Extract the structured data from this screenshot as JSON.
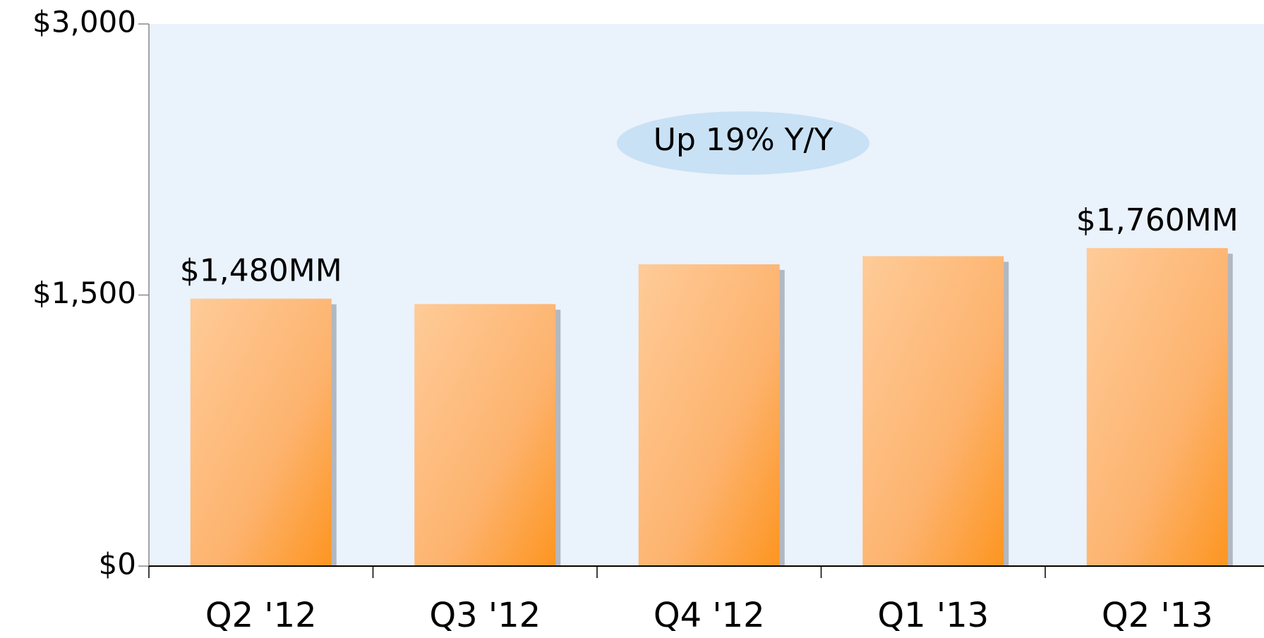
{
  "chart_data": {
    "type": "bar",
    "categories": [
      "Q2 '12",
      "Q3 '12",
      "Q4 '12",
      "Q1 '13",
      "Q2 '13"
    ],
    "values": [
      1480,
      1450,
      1670,
      1715,
      1760
    ],
    "value_labels": [
      "$1,480MM",
      null,
      null,
      null,
      "$1,760MM"
    ],
    "color": "#fdb36e",
    "ylim": [
      0,
      3000
    ],
    "yticks": [
      {
        "value": 0,
        "label": "$0"
      },
      {
        "value": 1500,
        "label": "$1,500"
      },
      {
        "value": 3000,
        "label": "$3,000"
      }
    ],
    "annotation": "Up 19% Y/Y"
  }
}
